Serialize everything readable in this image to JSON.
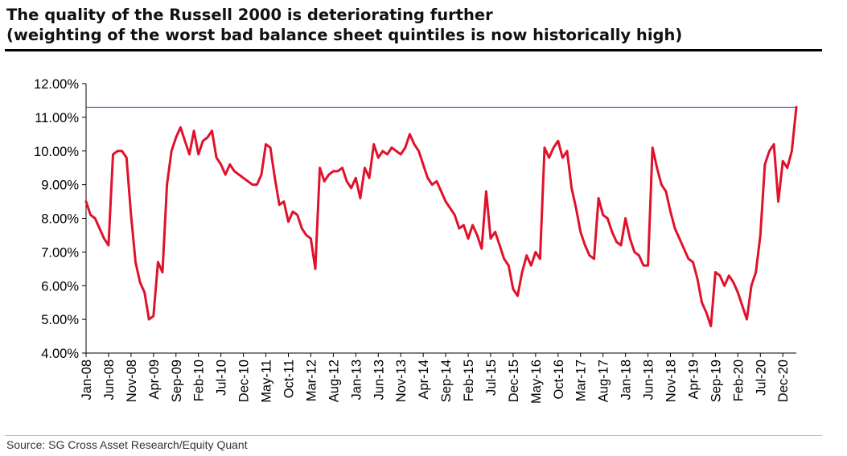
{
  "header": {
    "title_line1": "The quality of the Russell 2000 is deteriorating further",
    "title_line2": "(weighting of the worst bad balance sheet quintiles is now historically high)"
  },
  "footer": {
    "source": "Source: SG Cross Asset Research/Equity Quant"
  },
  "chart_data": {
    "type": "line",
    "title": "The quality of the Russell 2000 is deteriorating further",
    "subtitle": "(weighting of the worst bad balance sheet quintiles is now historically high)",
    "xlabel": "",
    "ylabel": "",
    "ylim": [
      4.0,
      12.0
    ],
    "y_ticks": [
      4,
      5,
      6,
      7,
      8,
      9,
      10,
      11,
      12
    ],
    "y_tick_labels": [
      "4.00%",
      "5.00%",
      "6.00%",
      "7.00%",
      "8.00%",
      "9.00%",
      "10.00%",
      "11.00%",
      "12.00%"
    ],
    "x_range": [
      "2008-01",
      "2021-03"
    ],
    "x_tick_labels": [
      "Jan-08",
      "Jun-08",
      "Nov-08",
      "Apr-09",
      "Sep-09",
      "Feb-10",
      "Jul-10",
      "Dec-10",
      "May-11",
      "Oct-11",
      "Mar-12",
      "Aug-12",
      "Jan-13",
      "Jun-13",
      "Nov-13",
      "Apr-14",
      "Sep-14",
      "Feb-15",
      "Jul-15",
      "Dec-15",
      "May-16",
      "Oct-16",
      "Mar-17",
      "Aug-17",
      "Jan-18",
      "Jun-18",
      "Nov-18",
      "Apr-19",
      "Sep-19",
      "Feb-20",
      "Jul-20",
      "Dec-20"
    ],
    "grid": false,
    "legend": "none",
    "reference_line": {
      "y": 11.3,
      "color": "#3344cc"
    },
    "series": [
      {
        "color": "#e0112b",
        "points": [
          [
            "2008-01",
            8.5
          ],
          [
            "2008-02",
            8.1
          ],
          [
            "2008-03",
            8.0
          ],
          [
            "2008-04",
            7.7
          ],
          [
            "2008-05",
            7.4
          ],
          [
            "2008-06",
            7.2
          ],
          [
            "2008-07",
            9.9
          ],
          [
            "2008-08",
            10.0
          ],
          [
            "2008-09",
            10.0
          ],
          [
            "2008-10",
            9.8
          ],
          [
            "2008-11",
            8.1
          ],
          [
            "2008-12",
            6.7
          ],
          [
            "2009-01",
            6.1
          ],
          [
            "2009-02",
            5.8
          ],
          [
            "2009-03",
            5.0
          ],
          [
            "2009-04",
            5.1
          ],
          [
            "2009-05",
            6.7
          ],
          [
            "2009-06",
            6.4
          ],
          [
            "2009-07",
            9.0
          ],
          [
            "2009-08",
            10.0
          ],
          [
            "2009-09",
            10.4
          ],
          [
            "2009-10",
            10.7
          ],
          [
            "2009-11",
            10.3
          ],
          [
            "2009-12",
            9.9
          ],
          [
            "2010-01",
            10.6
          ],
          [
            "2010-02",
            9.9
          ],
          [
            "2010-03",
            10.3
          ],
          [
            "2010-04",
            10.4
          ],
          [
            "2010-05",
            10.6
          ],
          [
            "2010-06",
            9.8
          ],
          [
            "2010-07",
            9.6
          ],
          [
            "2010-08",
            9.3
          ],
          [
            "2010-09",
            9.6
          ],
          [
            "2010-10",
            9.4
          ],
          [
            "2010-11",
            9.3
          ],
          [
            "2010-12",
            9.2
          ],
          [
            "2011-01",
            9.1
          ],
          [
            "2011-02",
            9.0
          ],
          [
            "2011-03",
            9.0
          ],
          [
            "2011-04",
            9.3
          ],
          [
            "2011-05",
            10.2
          ],
          [
            "2011-06",
            10.1
          ],
          [
            "2011-07",
            9.2
          ],
          [
            "2011-08",
            8.4
          ],
          [
            "2011-09",
            8.5
          ],
          [
            "2011-10",
            7.9
          ],
          [
            "2011-11",
            8.2
          ],
          [
            "2011-12",
            8.1
          ],
          [
            "2012-01",
            7.7
          ],
          [
            "2012-02",
            7.5
          ],
          [
            "2012-03",
            7.4
          ],
          [
            "2012-04",
            6.5
          ],
          [
            "2012-05",
            9.5
          ],
          [
            "2012-06",
            9.1
          ],
          [
            "2012-07",
            9.3
          ],
          [
            "2012-08",
            9.4
          ],
          [
            "2012-09",
            9.4
          ],
          [
            "2012-10",
            9.5
          ],
          [
            "2012-11",
            9.1
          ],
          [
            "2012-12",
            8.9
          ],
          [
            "2013-01",
            9.2
          ],
          [
            "2013-02",
            8.6
          ],
          [
            "2013-03",
            9.5
          ],
          [
            "2013-04",
            9.2
          ],
          [
            "2013-05",
            10.2
          ],
          [
            "2013-06",
            9.8
          ],
          [
            "2013-07",
            10.0
          ],
          [
            "2013-08",
            9.9
          ],
          [
            "2013-09",
            10.1
          ],
          [
            "2013-10",
            10.0
          ],
          [
            "2013-11",
            9.9
          ],
          [
            "2013-12",
            10.1
          ],
          [
            "2014-01",
            10.5
          ],
          [
            "2014-02",
            10.2
          ],
          [
            "2014-03",
            10.0
          ],
          [
            "2014-04",
            9.6
          ],
          [
            "2014-05",
            9.2
          ],
          [
            "2014-06",
            9.0
          ],
          [
            "2014-07",
            9.1
          ],
          [
            "2014-08",
            8.8
          ],
          [
            "2014-09",
            8.5
          ],
          [
            "2014-10",
            8.3
          ],
          [
            "2014-11",
            8.1
          ],
          [
            "2014-12",
            7.7
          ],
          [
            "2015-01",
            7.8
          ],
          [
            "2015-02",
            7.4
          ],
          [
            "2015-03",
            7.8
          ],
          [
            "2015-04",
            7.5
          ],
          [
            "2015-05",
            7.1
          ],
          [
            "2015-06",
            8.8
          ],
          [
            "2015-07",
            7.4
          ],
          [
            "2015-08",
            7.6
          ],
          [
            "2015-09",
            7.2
          ],
          [
            "2015-10",
            6.8
          ],
          [
            "2015-11",
            6.6
          ],
          [
            "2015-12",
            5.9
          ],
          [
            "2016-01",
            5.7
          ],
          [
            "2016-02",
            6.4
          ],
          [
            "2016-03",
            6.9
          ],
          [
            "2016-04",
            6.6
          ],
          [
            "2016-05",
            7.0
          ],
          [
            "2016-06",
            6.8
          ],
          [
            "2016-07",
            10.1
          ],
          [
            "2016-08",
            9.8
          ],
          [
            "2016-09",
            10.1
          ],
          [
            "2016-10",
            10.3
          ],
          [
            "2016-11",
            9.8
          ],
          [
            "2016-12",
            10.0
          ],
          [
            "2017-01",
            8.9
          ],
          [
            "2017-02",
            8.3
          ],
          [
            "2017-03",
            7.6
          ],
          [
            "2017-04",
            7.2
          ],
          [
            "2017-05",
            6.9
          ],
          [
            "2017-06",
            6.8
          ],
          [
            "2017-07",
            8.6
          ],
          [
            "2017-08",
            8.1
          ],
          [
            "2017-09",
            8.0
          ],
          [
            "2017-10",
            7.6
          ],
          [
            "2017-11",
            7.3
          ],
          [
            "2017-12",
            7.2
          ],
          [
            "2018-01",
            8.0
          ],
          [
            "2018-02",
            7.4
          ],
          [
            "2018-03",
            7.0
          ],
          [
            "2018-04",
            6.9
          ],
          [
            "2018-05",
            6.6
          ],
          [
            "2018-06",
            6.6
          ],
          [
            "2018-07",
            10.1
          ],
          [
            "2018-08",
            9.5
          ],
          [
            "2018-09",
            9.0
          ],
          [
            "2018-10",
            8.8
          ],
          [
            "2018-11",
            8.2
          ],
          [
            "2018-12",
            7.7
          ],
          [
            "2019-01",
            7.4
          ],
          [
            "2019-02",
            7.1
          ],
          [
            "2019-03",
            6.8
          ],
          [
            "2019-04",
            6.7
          ],
          [
            "2019-05",
            6.2
          ],
          [
            "2019-06",
            5.5
          ],
          [
            "2019-07",
            5.2
          ],
          [
            "2019-08",
            4.8
          ],
          [
            "2019-09",
            6.4
          ],
          [
            "2019-10",
            6.3
          ],
          [
            "2019-11",
            6.0
          ],
          [
            "2019-12",
            6.3
          ],
          [
            "2020-01",
            6.1
          ],
          [
            "2020-02",
            5.8
          ],
          [
            "2020-03",
            5.4
          ],
          [
            "2020-04",
            5.0
          ],
          [
            "2020-05",
            6.0
          ],
          [
            "2020-06",
            6.4
          ],
          [
            "2020-07",
            7.5
          ],
          [
            "2020-08",
            9.6
          ],
          [
            "2020-09",
            10.0
          ],
          [
            "2020-10",
            10.2
          ],
          [
            "2020-11",
            8.5
          ],
          [
            "2020-12",
            9.7
          ],
          [
            "2021-01",
            9.5
          ],
          [
            "2021-02",
            10.0
          ],
          [
            "2021-03",
            11.3
          ]
        ]
      }
    ]
  }
}
